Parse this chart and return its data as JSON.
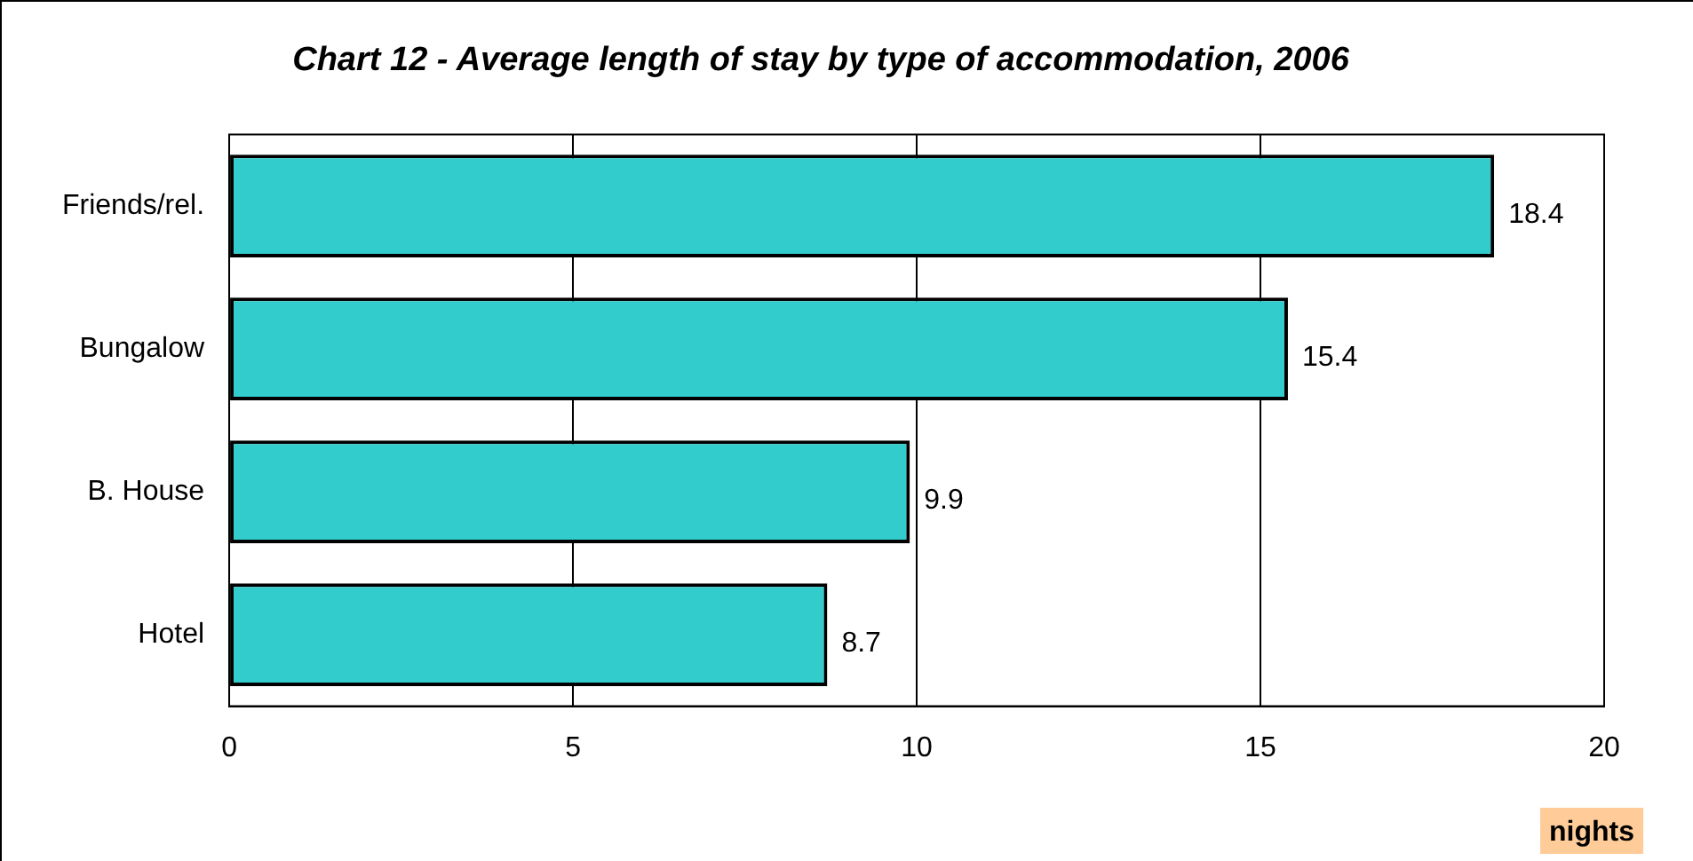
{
  "chart_data": {
    "type": "bar",
    "orientation": "horizontal",
    "title": "Chart 12 - Average length of stay by type of accommodation, 2006",
    "xlabel": "nights",
    "categories": [
      "Friends/rel.",
      "Bungalow",
      "B. House",
      "Hotel"
    ],
    "values": [
      18.4,
      15.4,
      9.9,
      8.7
    ],
    "color": "#33cccc",
    "xlim": [
      0,
      20
    ],
    "xticks": [
      0,
      5,
      10,
      15,
      20
    ],
    "grid": "x",
    "data_labels": true
  }
}
